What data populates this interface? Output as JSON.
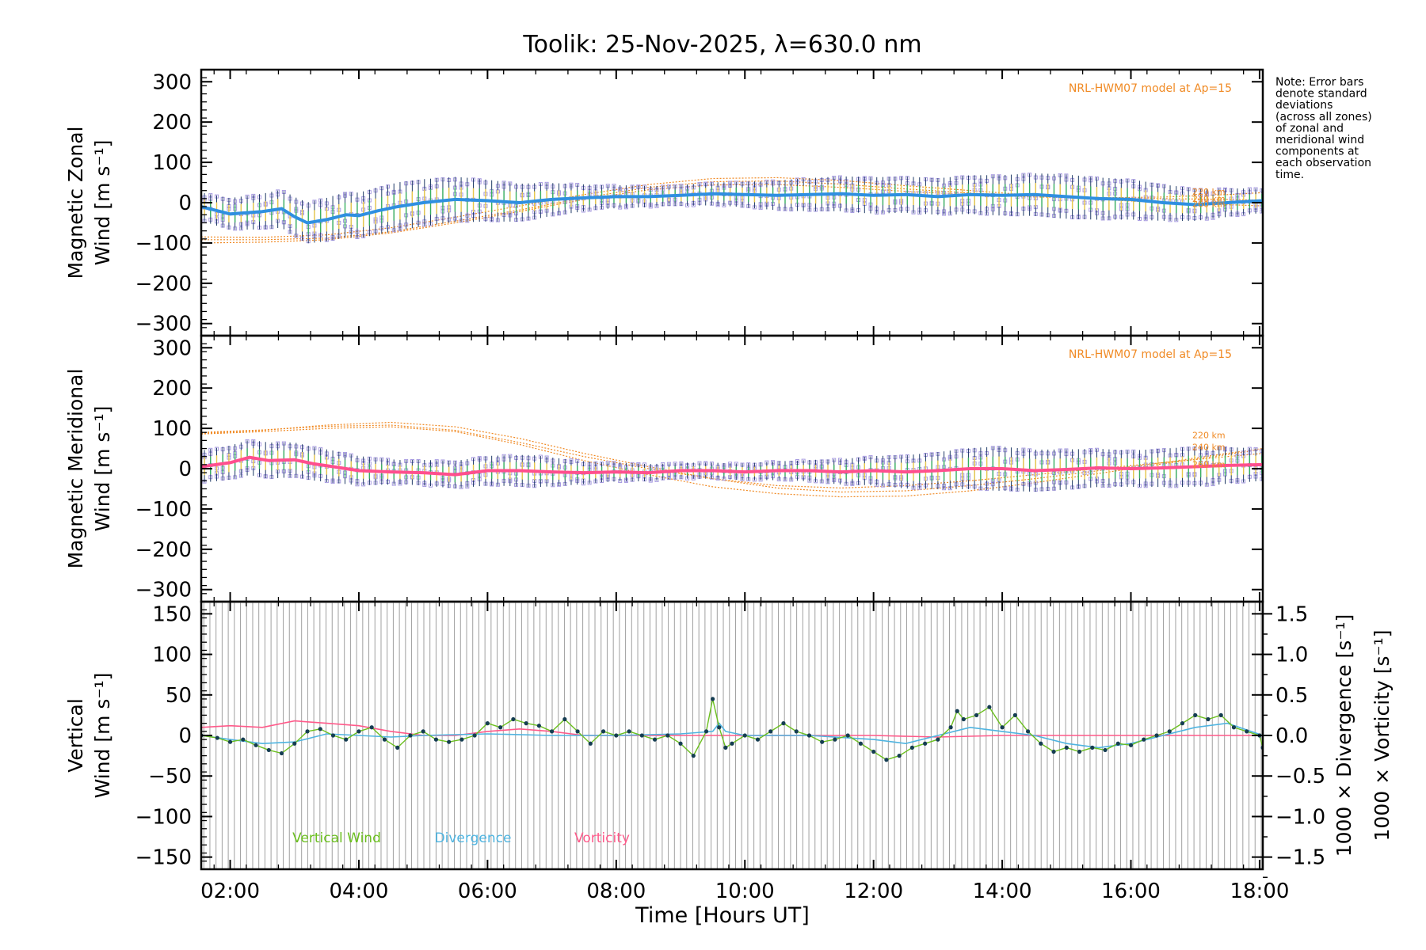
{
  "chart_data": {
    "type": "line",
    "title": "Toolik: 25-Nov-2025, λ=630.0 nm",
    "xlabel": "Time [Hours UT]",
    "xlim": [
      1.55,
      18.05
    ],
    "x_ticks": [
      "02:00",
      "04:00",
      "06:00",
      "08:00",
      "10:00",
      "12:00",
      "14:00",
      "16:00",
      "18:00"
    ],
    "note": [
      "Note: Error bars",
      "denote standard",
      "deviations",
      "(across all zones)",
      "of zonal and",
      "meridional wind",
      "components at",
      "each observation",
      "time."
    ],
    "colors": {
      "model": "#f08a24",
      "zonal": "#2f8fe0",
      "meridional": "#ff4f8e",
      "scatter": "#a79be0",
      "errbar": "#1f3a66",
      "vertical": "#6bbf1f",
      "divergence": "#4fb4e0",
      "vorticity": "#ff5a8a",
      "grid": "#a0a0a0"
    },
    "panels": [
      {
        "name": "zonal",
        "ylabel_line1": "Magnetic Zonal",
        "ylabel_line2": "Wind [m s⁻¹]",
        "ylim": [
          -330,
          330
        ],
        "yticks": [
          300,
          200,
          100,
          0,
          -100,
          -200,
          -300
        ],
        "ytick_labels": [
          "300",
          "200",
          "100",
          "0",
          "−100",
          "−200",
          "−300"
        ],
        "model_label": "NRL-HWM07 model at Ap=15",
        "altitude_labels": [
          "220 km",
          "240 km",
          "260 km"
        ],
        "model_curves": [
          {
            "x": [
              1.55,
              2.5,
              3.5,
              4.5,
              5.5,
              6.5,
              7.5,
              8.5,
              9.5,
              10.5,
              11.5,
              12.5,
              13.5,
              14.5,
              15.5,
              16.5,
              17.5,
              18.05
            ],
            "y": [
              -100,
              -98,
              -92,
              -75,
              -50,
              -22,
              8,
              32,
              44,
              45,
              38,
              28,
              20,
              14,
              12,
              14,
              20,
              25
            ]
          },
          {
            "x": [
              1.55,
              2.5,
              3.5,
              4.5,
              5.5,
              6.5,
              7.5,
              8.5,
              9.5,
              10.5,
              11.5,
              12.5,
              13.5,
              14.5,
              15.5,
              16.5,
              17.5,
              18.05
            ],
            "y": [
              -92,
              -92,
              -88,
              -72,
              -46,
              -18,
              12,
              38,
              52,
              54,
              46,
              34,
              24,
              16,
              12,
              10,
              8,
              6
            ]
          },
          {
            "x": [
              1.55,
              2.5,
              3.5,
              4.5,
              5.5,
              6.5,
              7.5,
              8.5,
              9.5,
              10.5,
              11.5,
              12.5,
              13.5,
              14.5,
              15.5,
              16.5,
              17.5,
              18.05
            ],
            "y": [
              -85,
              -86,
              -80,
              -62,
              -36,
              -8,
              20,
              45,
              60,
              62,
              55,
              42,
              30,
              18,
              8,
              0,
              -5,
              -8
            ]
          }
        ],
        "mean_wind": {
          "x": [
            1.55,
            2.0,
            2.5,
            2.8,
            3.0,
            3.2,
            3.5,
            3.8,
            4.0,
            4.3,
            4.6,
            5.0,
            5.5,
            6.0,
            6.5,
            7.0,
            7.5,
            8.0,
            8.5,
            9.0,
            9.5,
            10.0,
            10.5,
            11.0,
            11.5,
            12.0,
            12.5,
            13.0,
            13.5,
            14.0,
            14.5,
            15.0,
            15.5,
            16.0,
            16.5,
            17.0,
            17.5,
            18.05
          ],
          "y": [
            -10,
            -28,
            -22,
            -15,
            -35,
            -50,
            -42,
            -30,
            -32,
            -20,
            -10,
            0,
            8,
            5,
            0,
            8,
            12,
            15,
            15,
            18,
            22,
            20,
            18,
            20,
            22,
            18,
            20,
            15,
            20,
            18,
            20,
            15,
            10,
            8,
            0,
            -5,
            0,
            5
          ]
        },
        "spread": [
          35,
          45,
          55,
          60,
          55,
          45,
          30,
          25,
          30,
          40,
          45,
          45,
          50,
          55,
          50,
          40,
          30
        ]
      },
      {
        "name": "meridional",
        "ylabel_line1": "Magnetic Meridional",
        "ylabel_line2": "Wind [m s⁻¹]",
        "ylim": [
          -330,
          330
        ],
        "yticks": [
          300,
          200,
          100,
          0,
          -100,
          -200,
          -300
        ],
        "ytick_labels": [
          "300",
          "200",
          "100",
          "0",
          "−100",
          "−200",
          "−300"
        ],
        "model_label": "NRL-HWM07 model at Ap=15",
        "altitude_labels": [
          "220 km",
          "240 km",
          "260 km"
        ],
        "model_curves": [
          {
            "x": [
              1.55,
              2.5,
              3.5,
              4.5,
              5.5,
              6.5,
              7.5,
              8.5,
              9.5,
              10.5,
              11.5,
              12.5,
              13.5,
              14.5,
              15.5,
              16.5,
              17.5,
              18.05
            ],
            "y": [
              90,
              96,
              105,
              108,
              95,
              65,
              30,
              0,
              -25,
              -42,
              -48,
              -42,
              -30,
              -15,
              0,
              15,
              30,
              38
            ]
          },
          {
            "x": [
              1.55,
              2.5,
              3.5,
              4.5,
              5.5,
              6.5,
              7.5,
              8.5,
              9.5,
              10.5,
              11.5,
              12.5,
              13.5,
              14.5,
              15.5,
              16.5,
              17.5,
              18.05
            ],
            "y": [
              88,
              95,
              108,
              115,
              104,
              75,
              38,
              5,
              -25,
              -48,
              -58,
              -55,
              -42,
              -25,
              -5,
              15,
              38,
              50
            ]
          },
          {
            "x": [
              1.55,
              2.5,
              3.5,
              4.5,
              5.5,
              6.5,
              7.5,
              8.5,
              9.5,
              10.5,
              11.5,
              12.5,
              13.5,
              14.5,
              15.5,
              16.5,
              17.5,
              18.05
            ],
            "y": [
              86,
              92,
              100,
              104,
              92,
              60,
              20,
              -15,
              -45,
              -62,
              -70,
              -68,
              -55,
              -35,
              -12,
              12,
              35,
              48
            ]
          }
        ],
        "mean_wind": {
          "x": [
            1.55,
            2.0,
            2.3,
            2.6,
            3.0,
            3.3,
            3.6,
            4.0,
            4.5,
            5.0,
            5.5,
            6.0,
            6.5,
            7.0,
            7.5,
            8.0,
            8.5,
            9.0,
            9.5,
            10.0,
            10.5,
            11.0,
            11.5,
            12.0,
            12.5,
            13.0,
            13.5,
            14.0,
            14.5,
            15.0,
            15.5,
            16.0,
            16.5,
            17.0,
            17.5,
            18.05
          ],
          "y": [
            5,
            15,
            28,
            20,
            22,
            12,
            5,
            -5,
            -8,
            -10,
            -15,
            -5,
            -5,
            -8,
            -10,
            -8,
            -10,
            -5,
            -5,
            -8,
            -5,
            -5,
            -8,
            -5,
            -8,
            -5,
            0,
            0,
            -5,
            -2,
            2,
            0,
            2,
            5,
            8,
            10
          ]
        },
        "spread": [
          40,
          45,
          40,
          30,
          35,
          40,
          25,
          20,
          20,
          25,
          35,
          45,
          55,
          50,
          45,
          50,
          40
        ]
      },
      {
        "name": "vertical",
        "ylabel_line1": "Vertical",
        "ylabel_line2": "Wind [m s⁻¹]",
        "ylim": [
          -165,
          165
        ],
        "yticks": [
          150,
          100,
          50,
          0,
          -50,
          -100,
          -150
        ],
        "ytick_labels": [
          "150",
          "100",
          "50",
          "0",
          "−50",
          "−100",
          "−150"
        ],
        "right_ylim": [
          -1.65,
          1.65
        ],
        "right_yticks": [
          1.5,
          1.0,
          0.5,
          0.0,
          -0.5,
          -1.0,
          -1.5
        ],
        "right_ytick_labels": [
          "1.5",
          "1.0",
          "0.5",
          "0.0",
          "−0.5",
          "−1.0",
          "−1.5"
        ],
        "right_label_divergence": "1000 × Divergence [s⁻¹]",
        "right_label_vorticity": "1000 × Vorticity [s⁻¹]",
        "legend": [
          "Vertical Wind",
          "Divergence",
          "Vorticity"
        ],
        "vertical_wind": {
          "x": [
            1.55,
            1.8,
            2.0,
            2.2,
            2.4,
            2.6,
            2.8,
            3.0,
            3.2,
            3.4,
            3.6,
            3.8,
            4.0,
            4.2,
            4.4,
            4.6,
            4.8,
            5.0,
            5.2,
            5.4,
            5.6,
            5.8,
            6.0,
            6.2,
            6.4,
            6.6,
            6.8,
            7.0,
            7.2,
            7.4,
            7.6,
            7.8,
            8.0,
            8.2,
            8.4,
            8.6,
            8.8,
            9.0,
            9.2,
            9.4,
            9.5,
            9.6,
            9.7,
            9.8,
            10.0,
            10.2,
            10.4,
            10.6,
            10.8,
            11.0,
            11.2,
            11.4,
            11.6,
            11.8,
            12.0,
            12.2,
            12.4,
            12.6,
            12.8,
            13.0,
            13.2,
            13.3,
            13.4,
            13.6,
            13.8,
            14.0,
            14.2,
            14.4,
            14.6,
            14.8,
            15.0,
            15.2,
            15.4,
            15.6,
            15.8,
            16.0,
            16.2,
            16.4,
            16.6,
            16.8,
            17.0,
            17.2,
            17.4,
            17.6,
            17.8,
            18.0,
            18.05
          ],
          "y": [
            0,
            -3,
            -8,
            -5,
            -12,
            -18,
            -22,
            -10,
            5,
            8,
            0,
            -5,
            5,
            10,
            -5,
            -15,
            0,
            5,
            -5,
            -8,
            -5,
            0,
            15,
            10,
            20,
            15,
            12,
            5,
            20,
            5,
            -10,
            5,
            0,
            5,
            0,
            -5,
            0,
            -10,
            -25,
            5,
            45,
            10,
            -15,
            -10,
            0,
            -5,
            5,
            15,
            5,
            0,
            -8,
            -5,
            0,
            -10,
            -20,
            -30,
            -25,
            -15,
            -10,
            -5,
            10,
            30,
            20,
            25,
            35,
            10,
            25,
            5,
            -10,
            -20,
            -15,
            -20,
            -15,
            -18,
            -10,
            -12,
            -5,
            0,
            5,
            15,
            25,
            20,
            25,
            10,
            5,
            0,
            -15
          ]
        },
        "divergence": {
          "x": [
            1.55,
            2.0,
            2.5,
            3.0,
            3.5,
            4.0,
            4.5,
            5.0,
            6.0,
            7.0,
            8.0,
            9.0,
            9.5,
            9.6,
            9.7,
            10.0,
            11.0,
            12.0,
            12.5,
            13.0,
            13.5,
            14.0,
            14.5,
            15.0,
            15.5,
            16.0,
            16.5,
            17.0,
            17.5,
            18.05
          ],
          "y": [
            0.0,
            -0.05,
            -0.1,
            -0.08,
            0.02,
            0.0,
            -0.02,
            0.0,
            0.02,
            0.0,
            0.0,
            0.02,
            0.05,
            0.15,
            0.05,
            0.0,
            0.0,
            -0.05,
            -0.1,
            0.0,
            0.1,
            0.05,
            0.0,
            -0.1,
            -0.15,
            -0.1,
            0.0,
            0.1,
            0.15,
            0.0
          ]
        },
        "vorticity": {
          "x": [
            1.55,
            2.0,
            2.5,
            3.0,
            3.5,
            4.0,
            4.5,
            5.0,
            5.5,
            6.0,
            6.5,
            7.0,
            7.5,
            8.0,
            9.0,
            10.0,
            11.0,
            12.0,
            13.0,
            14.0,
            15.0,
            16.0,
            17.0,
            18.05
          ],
          "y": [
            0.1,
            0.12,
            0.1,
            0.18,
            0.15,
            0.12,
            0.05,
            0.0,
            0.0,
            0.05,
            0.08,
            0.05,
            0.0,
            0.0,
            0.0,
            0.0,
            0.0,
            0.0,
            -0.02,
            0.0,
            0.0,
            0.0,
            0.0,
            0.0
          ]
        }
      }
    ]
  }
}
